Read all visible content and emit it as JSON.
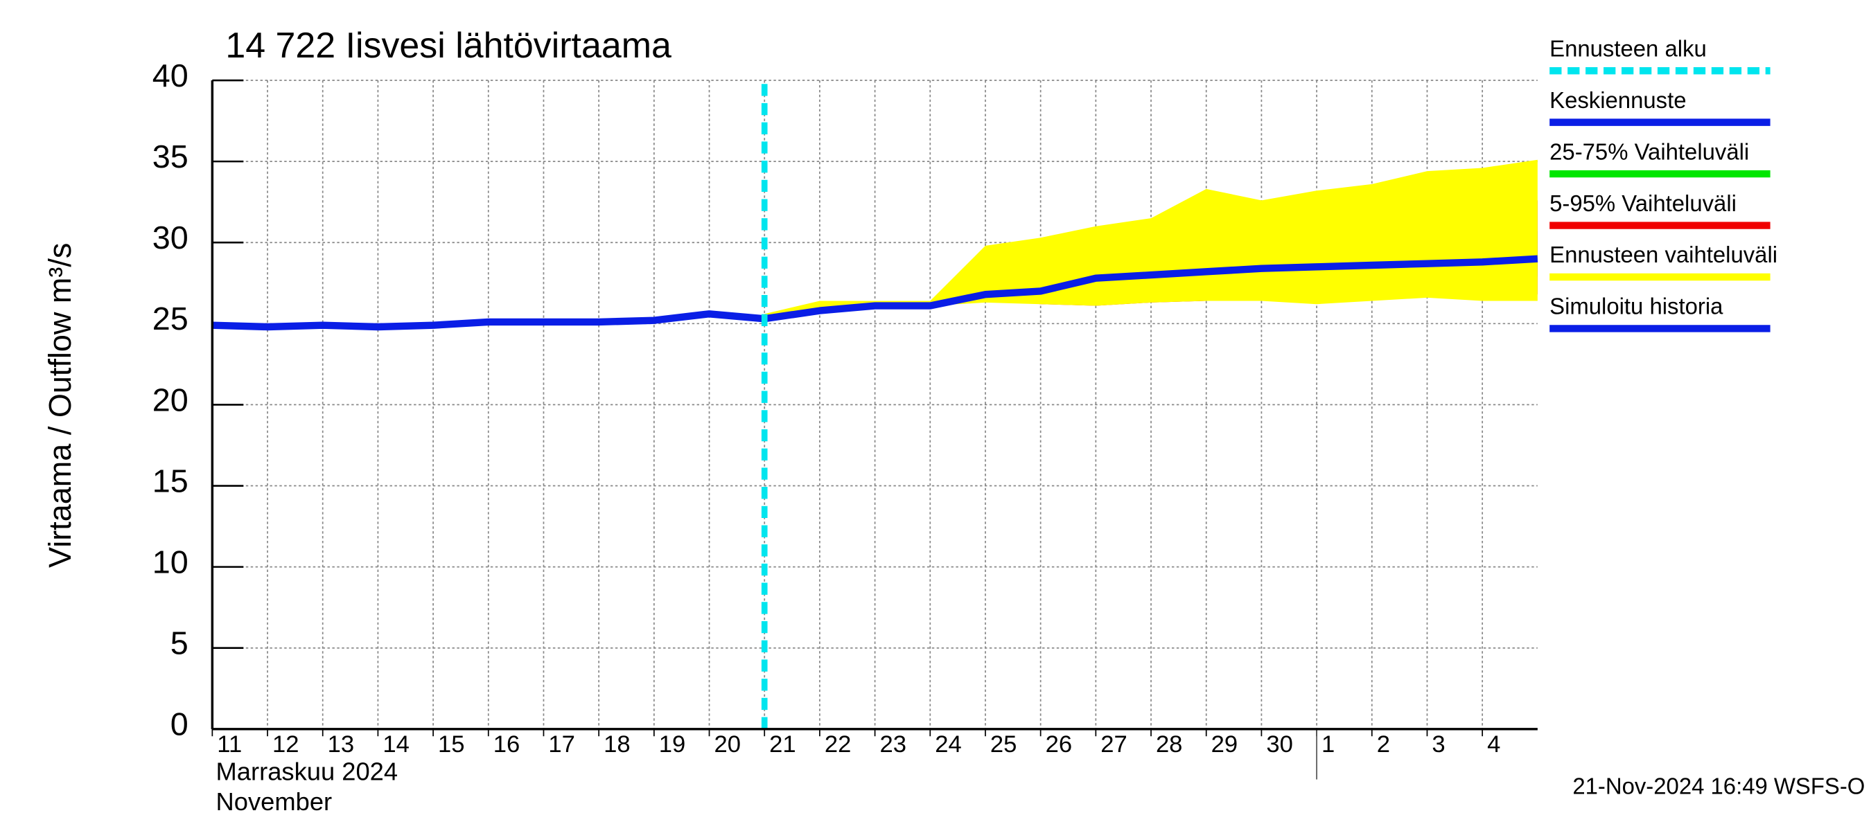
{
  "chart_data": {
    "type": "line",
    "title": "14 722 Iisvesi lähtövirtaama",
    "y_label": "Virtaama / Outflow   m³/s",
    "x_label": "Marraskuu 2024",
    "x_label_en": "November",
    "footer": "21-Nov-2024 16:49 WSFS-O",
    "xlim": [
      0,
      24
    ],
    "ylim": [
      0,
      40
    ],
    "yticks": [
      0,
      5,
      10,
      15,
      20,
      25,
      30,
      35,
      40
    ],
    "xticks": [
      {
        "value": 0,
        "label": "11"
      },
      {
        "value": 1,
        "label": "12"
      },
      {
        "value": 2,
        "label": "13"
      },
      {
        "value": 3,
        "label": "14"
      },
      {
        "value": 4,
        "label": "15"
      },
      {
        "value": 5,
        "label": "16"
      },
      {
        "value": 6,
        "label": "17"
      },
      {
        "value": 7,
        "label": "18"
      },
      {
        "value": 8,
        "label": "19"
      },
      {
        "value": 9,
        "label": "20"
      },
      {
        "value": 10,
        "label": "21"
      },
      {
        "value": 11,
        "label": "22"
      },
      {
        "value": 12,
        "label": "23"
      },
      {
        "value": 13,
        "label": "24"
      },
      {
        "value": 14,
        "label": "25"
      },
      {
        "value": 15,
        "label": "26"
      },
      {
        "value": 16,
        "label": "27"
      },
      {
        "value": 17,
        "label": "28"
      },
      {
        "value": 18,
        "label": "29"
      },
      {
        "value": 19,
        "label": "30"
      },
      {
        "value": 20,
        "label": "1"
      },
      {
        "value": 21,
        "label": "2"
      },
      {
        "value": 22,
        "label": "3"
      },
      {
        "value": 23,
        "label": "4"
      }
    ],
    "month_boundary": 20,
    "grid": true,
    "series": [
      {
        "name": "Ennusteen alku",
        "color": "#00e5ee",
        "kind": "vline",
        "x": 10
      },
      {
        "name": "Keskiennuste",
        "color": "#0a1ee6",
        "kind": "line",
        "x": [
          10,
          11,
          12,
          13,
          14,
          15,
          16,
          17,
          18,
          19,
          20,
          21,
          22,
          23,
          24
        ],
        "values": [
          25.3,
          25.8,
          26.1,
          26.1,
          26.8,
          27.0,
          27.8,
          28.0,
          28.2,
          28.4,
          28.5,
          28.6,
          28.7,
          28.8,
          29.0
        ]
      },
      {
        "name": "25-75% Vaihteluväli",
        "color": "#00e600",
        "kind": "band",
        "x": [
          13,
          14,
          15,
          16,
          17,
          18,
          19,
          20,
          21,
          22,
          23,
          24
        ],
        "lower": [
          26.1,
          26.7,
          26.8,
          27.3,
          27.4,
          27.6,
          27.8,
          28.0,
          27.6,
          27.8,
          27.8,
          27.9
        ],
        "upper": [
          26.1,
          27.0,
          27.4,
          28.3,
          28.6,
          28.8,
          29.0,
          29.4,
          29.7,
          29.8,
          30.2,
          30.7
        ]
      },
      {
        "name": "5-95% Vaihteluväli",
        "color": "#f00000",
        "kind": "band",
        "x": [
          13,
          14,
          15,
          16,
          17,
          18,
          19,
          20,
          21,
          22,
          23,
          24
        ],
        "lower": [
          26.1,
          26.5,
          26.2,
          26.1,
          26.3,
          26.4,
          26.5,
          26.5,
          26.8,
          26.9,
          26.8,
          26.8
        ],
        "upper": [
          26.1,
          27.3,
          28.8,
          29.8,
          30.1,
          30.3,
          30.8,
          31.8,
          31.7,
          32.0,
          32.3,
          32.6
        ]
      },
      {
        "name": "Ennusteen vaihteluväli",
        "color": "#ffff00",
        "kind": "band",
        "x": [
          10,
          11,
          12,
          13,
          14,
          15,
          16,
          17,
          18,
          19,
          20,
          21,
          22,
          23,
          24
        ],
        "lower": [
          25.3,
          25.8,
          26.1,
          26.1,
          26.3,
          26.2,
          26.1,
          26.3,
          26.4,
          26.4,
          26.2,
          26.4,
          26.6,
          26.4,
          26.4
        ],
        "upper": [
          25.6,
          26.4,
          26.4,
          26.4,
          29.8,
          30.3,
          31.0,
          31.5,
          33.3,
          32.6,
          33.2,
          33.6,
          34.4,
          34.6,
          35.1
        ]
      },
      {
        "name": "Simuloitu historia",
        "color": "#0a1ee6",
        "kind": "line",
        "x": [
          0,
          1,
          2,
          3,
          4,
          5,
          6,
          7,
          8,
          9,
          10
        ],
        "values": [
          24.9,
          24.8,
          24.9,
          24.8,
          24.9,
          25.1,
          25.1,
          25.1,
          25.2,
          25.6,
          25.3
        ]
      }
    ]
  }
}
